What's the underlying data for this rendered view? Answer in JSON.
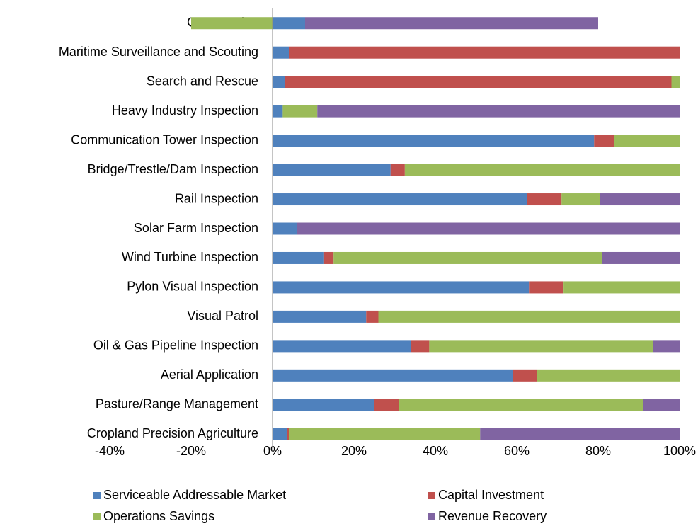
{
  "chart_data": {
    "type": "stacked-barh",
    "categories": [
      "Construction",
      "Maritime Surveillance and Scouting",
      "Search and Rescue",
      "Heavy Industry Inspection",
      "Communication Tower Inspection",
      "Bridge/Trestle/Dam Inspection",
      "Rail Inspection",
      "Solar Farm Inspection",
      "Wind Turbine Inspection",
      "Pylon Visual Inspection",
      "Visual Patrol",
      "Oil & Gas Pipeline Inspection",
      "Aerial Application",
      "Pasture/Range Management",
      "Cropland Precision Agriculture"
    ],
    "series": [
      {
        "name": "Serviceable Addressable Market",
        "color": "#4f81bd",
        "values": [
          8,
          4,
          3,
          2.5,
          79,
          29,
          62.5,
          6,
          12.5,
          63,
          23,
          34,
          59,
          25,
          3.5
        ]
      },
      {
        "name": "Capital Investment",
        "color": "#c0504d",
        "values": [
          0,
          96,
          95,
          0,
          5,
          3.5,
          8.5,
          0,
          2.5,
          8.5,
          3,
          4.5,
          6,
          6,
          0.5
        ]
      },
      {
        "name": "Operations Savings",
        "color": "#9bbb59",
        "values": [
          -20,
          0,
          2,
          8.5,
          16,
          67.5,
          9.5,
          0,
          66,
          28.5,
          74,
          55,
          35,
          60,
          47
        ]
      },
      {
        "name": "Revenue Recovery",
        "color": "#8064a2",
        "values": [
          72,
          0,
          0,
          89,
          0,
          0,
          19.5,
          94,
          19,
          0,
          0,
          6.5,
          0,
          9,
          49
        ]
      }
    ],
    "xlim": [
      -40,
      100
    ],
    "xticks": [
      {
        "value": -40,
        "label": "-40%"
      },
      {
        "value": -20,
        "label": "-20%"
      },
      {
        "value": 0,
        "label": "0%"
      },
      {
        "value": 20,
        "label": "20%"
      },
      {
        "value": 40,
        "label": "40%"
      },
      {
        "value": 60,
        "label": "60%"
      },
      {
        "value": 80,
        "label": "80%"
      },
      {
        "value": 100,
        "label": "100%"
      }
    ],
    "grid": false,
    "legend": "bottom"
  }
}
